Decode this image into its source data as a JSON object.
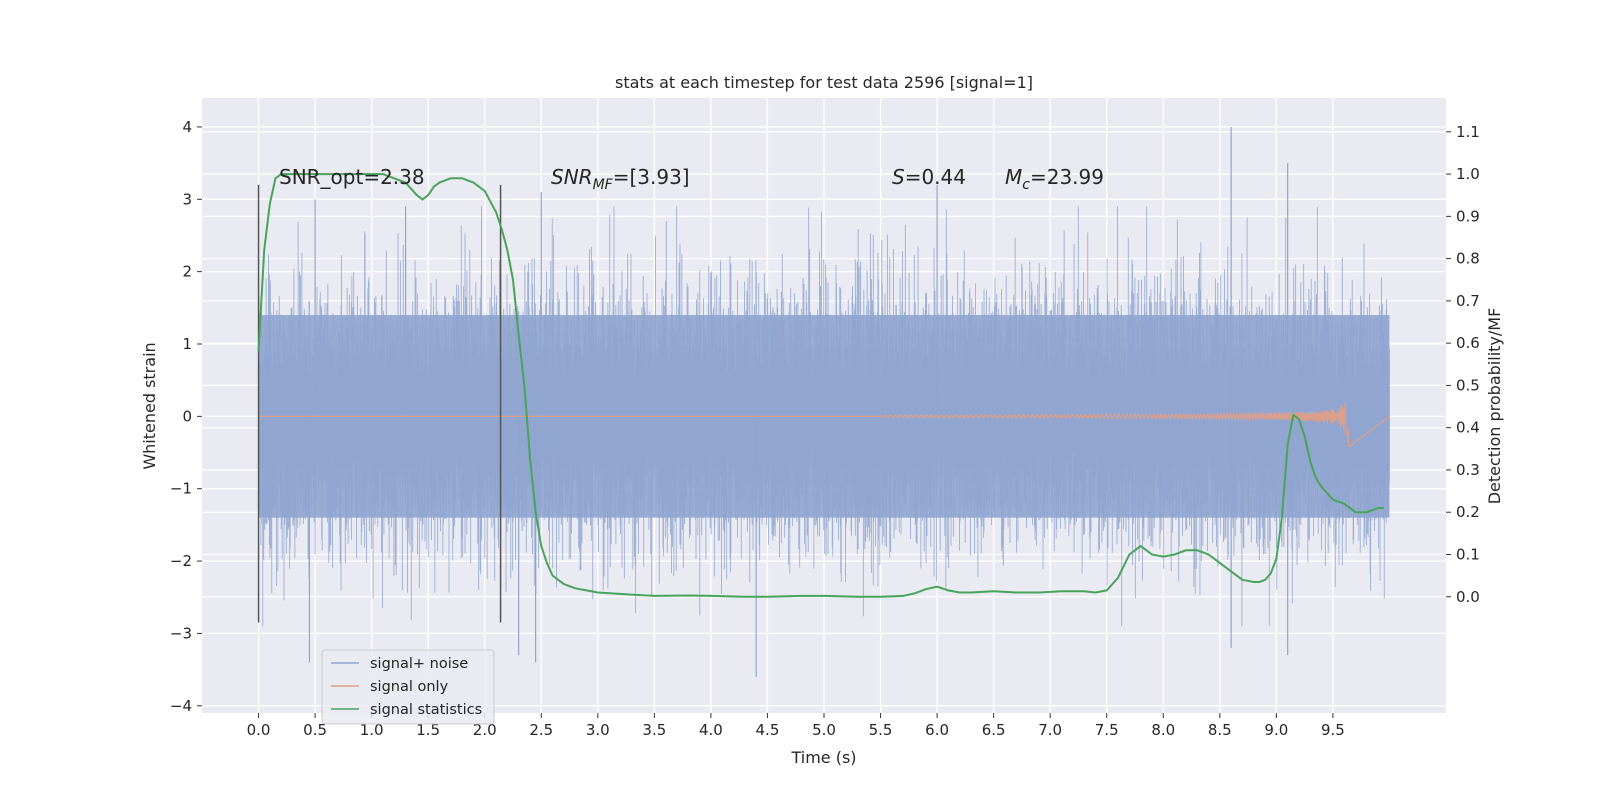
{
  "chart_data": {
    "type": "line",
    "title": "stats at each timestep for test data 2596 [signal=1]",
    "xlabel": "Time (s)",
    "ylabel": "Whitened strain",
    "y2label": "Detection probability/MF",
    "xlim": [
      -0.5,
      10.5
    ],
    "ylim": [
      -4.1,
      4.4
    ],
    "y2lim": [
      -0.275,
      1.18
    ],
    "xticks": [
      "0.0",
      "0.5",
      "1.0",
      "1.5",
      "2.0",
      "2.5",
      "3.0",
      "3.5",
      "4.0",
      "4.5",
      "5.0",
      "5.5",
      "6.0",
      "6.5",
      "7.0",
      "7.5",
      "8.0",
      "8.5",
      "9.0",
      "9.5"
    ],
    "yticks": [
      "4",
      "3",
      "2",
      "1",
      "0",
      "−1",
      "−2",
      "−3",
      "−4"
    ],
    "y2ticks": [
      "1.1",
      "1.0",
      "0.9",
      "0.8",
      "0.7",
      "0.6",
      "0.5",
      "0.4",
      "0.3",
      "0.2",
      "0.1",
      "0.0"
    ],
    "grid": true,
    "legend_placement": "lower-left",
    "annotations": {
      "snr_opt": "SNR_opt=2.38",
      "snr_mf_base": "SNR",
      "snr_mf_sub": "MF",
      "snr_mf_rest": "=[3.93]",
      "s_label": "S",
      "s_value": "=0.44",
      "mc_base": "M",
      "mc_sub": "c",
      "mc_value": "=23.99"
    },
    "window_markers_x": [
      0.0,
      2.14
    ],
    "series": [
      {
        "name": "signal+ noise",
        "color": "#8fa4cf",
        "x_range": [
          0.0,
          10.0
        ],
        "envelope": {
          "typical_amplitude": 1.5,
          "peak_samples": [
            {
              "x": 0.5,
              "y": 3.0
            },
            {
              "x": 1.3,
              "y": 2.9
            },
            {
              "x": 2.3,
              "y": -3.3
            },
            {
              "x": 2.5,
              "y": 3.1
            },
            {
              "x": 4.4,
              "y": -3.6
            },
            {
              "x": 6.0,
              "y": 3.2
            },
            {
              "x": 8.6,
              "y": 4.0
            },
            {
              "x": 9.1,
              "y": 3.5
            },
            {
              "x": 8.6,
              "y": -3.2
            },
            {
              "x": 9.1,
              "y": -3.3
            },
            {
              "x": 0.45,
              "y": -3.4
            },
            {
              "x": 2.45,
              "y": -3.4
            }
          ]
        }
      },
      {
        "name": "signal only",
        "color": "#dd9f8a",
        "x_range": [
          0.0,
          9.65
        ],
        "chirp_peak_x": 9.65,
        "chirp_peak_amplitude": 0.45
      },
      {
        "name": "signal statistics",
        "color": "#4aa35a",
        "x": [
          0.0,
          0.05,
          0.1,
          0.15,
          0.2,
          0.3,
          0.4,
          0.5,
          0.7,
          0.9,
          1.0,
          1.1,
          1.2,
          1.3,
          1.4,
          1.45,
          1.5,
          1.55,
          1.6,
          1.7,
          1.8,
          1.9,
          2.0,
          2.1,
          2.15,
          2.2,
          2.25,
          2.3,
          2.35,
          2.4,
          2.45,
          2.5,
          2.55,
          2.6,
          2.7,
          2.8,
          3.0,
          3.3,
          3.5,
          3.8,
          4.0,
          4.3,
          4.5,
          4.8,
          5.0,
          5.3,
          5.5,
          5.7,
          5.8,
          5.9,
          6.0,
          6.1,
          6.2,
          6.3,
          6.5,
          6.7,
          6.9,
          7.1,
          7.3,
          7.4,
          7.5,
          7.6,
          7.7,
          7.8,
          7.9,
          8.0,
          8.1,
          8.2,
          8.3,
          8.4,
          8.5,
          8.6,
          8.7,
          8.8,
          8.85,
          8.9,
          8.95,
          9.0,
          9.05,
          9.1,
          9.15,
          9.2,
          9.25,
          9.3,
          9.35,
          9.4,
          9.5,
          9.6,
          9.7,
          9.8,
          9.9,
          9.95
        ],
        "y": [
          0.58,
          0.82,
          0.93,
          0.99,
          1.0,
          1.0,
          1.0,
          1.0,
          1.0,
          1.0,
          1.0,
          1.0,
          0.99,
          0.98,
          0.95,
          0.94,
          0.95,
          0.97,
          0.98,
          0.99,
          0.99,
          0.98,
          0.96,
          0.91,
          0.87,
          0.82,
          0.75,
          0.62,
          0.5,
          0.33,
          0.2,
          0.12,
          0.08,
          0.05,
          0.03,
          0.02,
          0.01,
          0.005,
          0.002,
          0.003,
          0.002,
          0.0,
          0.0,
          0.002,
          0.002,
          0.0,
          0.0,
          0.002,
          0.008,
          0.018,
          0.024,
          0.015,
          0.01,
          0.01,
          0.013,
          0.01,
          0.01,
          0.013,
          0.013,
          0.01,
          0.015,
          0.045,
          0.1,
          0.12,
          0.1,
          0.095,
          0.1,
          0.11,
          0.11,
          0.1,
          0.08,
          0.06,
          0.04,
          0.035,
          0.035,
          0.04,
          0.055,
          0.09,
          0.19,
          0.36,
          0.43,
          0.42,
          0.38,
          0.32,
          0.28,
          0.26,
          0.23,
          0.22,
          0.2,
          0.2,
          0.21,
          0.21
        ]
      }
    ]
  }
}
